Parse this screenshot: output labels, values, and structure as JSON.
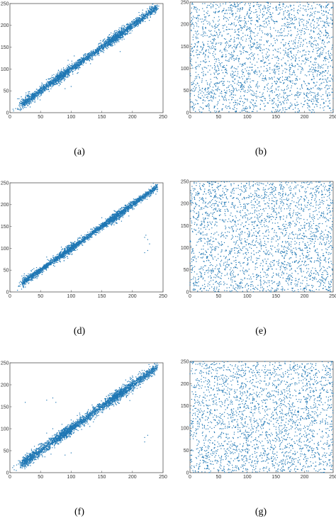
{
  "figure": {
    "marker_color": "#1f77b4",
    "axis_color": "#555555"
  },
  "chart_data": [
    {
      "type": "scatter",
      "caption": "(a)",
      "pattern": "correlated",
      "xlim": [
        0,
        250
      ],
      "ylim": [
        0,
        250
      ],
      "xticks": [
        0,
        50,
        100,
        150,
        200,
        250
      ],
      "yticks": [
        0,
        50,
        100,
        150,
        200,
        250
      ],
      "diagonal_range": [
        20,
        240
      ],
      "point_count": 2600,
      "spread": 4.5,
      "clusters": [
        {
          "x": 30,
          "y": 30,
          "n": 120
        },
        {
          "x": 85,
          "y": 85,
          "n": 220
        },
        {
          "x": 175,
          "y": 175,
          "n": 260
        }
      ],
      "outliers": [
        [
          50,
          45
        ],
        [
          60,
          60
        ],
        [
          65,
          70
        ],
        [
          70,
          65
        ],
        [
          90,
          55
        ],
        [
          100,
          60
        ],
        [
          110,
          90
        ],
        [
          95,
          120
        ],
        [
          105,
          130
        ],
        [
          180,
          140
        ],
        [
          185,
          200
        ],
        [
          190,
          180
        ]
      ]
    },
    {
      "type": "scatter",
      "caption": "(b)",
      "pattern": "uniform",
      "xlim": [
        0,
        250
      ],
      "ylim": [
        0,
        250
      ],
      "xticks": [
        0,
        50,
        100,
        150,
        200,
        250
      ],
      "yticks": [
        0,
        50,
        100,
        150,
        200,
        250
      ],
      "point_count": 2500
    },
    {
      "type": "scatter",
      "caption": "(d)",
      "pattern": "correlated",
      "xlim": [
        0,
        250
      ],
      "ylim": [
        0,
        250
      ],
      "xticks": [
        0,
        50,
        100,
        150,
        200,
        250
      ],
      "yticks": [
        0,
        50,
        100,
        150,
        200,
        250
      ],
      "diagonal_range": [
        20,
        240
      ],
      "point_count": 2600,
      "spread": 3.5,
      "clusters": [
        {
          "x": 30,
          "y": 30,
          "n": 80
        },
        {
          "x": 95,
          "y": 95,
          "n": 240
        },
        {
          "x": 175,
          "y": 175,
          "n": 260
        }
      ],
      "outliers": [
        [
          140,
          130
        ],
        [
          160,
          150
        ],
        [
          220,
          90
        ],
        [
          225,
          95
        ],
        [
          220,
          125
        ],
        [
          222,
          130
        ],
        [
          225,
          120
        ],
        [
          228,
          110
        ],
        [
          60,
          80
        ],
        [
          150,
          170
        ]
      ]
    },
    {
      "type": "scatter",
      "caption": "(e)",
      "pattern": "uniform",
      "xlim": [
        0,
        250
      ],
      "ylim": [
        0,
        250
      ],
      "xticks": [
        0,
        50,
        100,
        150,
        200,
        250
      ],
      "yticks": [
        0,
        50,
        100,
        150,
        200,
        250
      ],
      "point_count": 2500
    },
    {
      "type": "scatter",
      "caption": "(f)",
      "pattern": "correlated",
      "xlim": [
        0,
        250
      ],
      "ylim": [
        0,
        250
      ],
      "xticks": [
        0,
        50,
        100,
        150,
        200,
        250
      ],
      "yticks": [
        0,
        50,
        100,
        150,
        200,
        250
      ],
      "diagonal_range": [
        20,
        240
      ],
      "point_count": 2600,
      "spread": 5.5,
      "clusters": [
        {
          "x": 30,
          "y": 30,
          "n": 120
        },
        {
          "x": 90,
          "y": 90,
          "n": 260
        },
        {
          "x": 175,
          "y": 175,
          "n": 260
        }
      ],
      "outliers": [
        [
          25,
          160
        ],
        [
          60,
          165
        ],
        [
          70,
          170
        ],
        [
          75,
          160
        ],
        [
          85,
          110
        ],
        [
          100,
          120
        ],
        [
          110,
          130
        ],
        [
          60,
          90
        ],
        [
          70,
          100
        ],
        [
          90,
          40
        ],
        [
          100,
          45
        ],
        [
          40,
          60
        ],
        [
          220,
          80
        ],
        [
          225,
          85
        ],
        [
          220,
          70
        ],
        [
          200,
          220
        ],
        [
          210,
          215
        ]
      ]
    },
    {
      "type": "scatter",
      "caption": "(g)",
      "pattern": "uniform",
      "xlim": [
        0,
        250
      ],
      "ylim": [
        0,
        250
      ],
      "xticks": [
        0,
        50,
        100,
        150,
        200,
        250
      ],
      "yticks": [
        0,
        50,
        100,
        150,
        200,
        250
      ],
      "point_count": 2500
    }
  ]
}
